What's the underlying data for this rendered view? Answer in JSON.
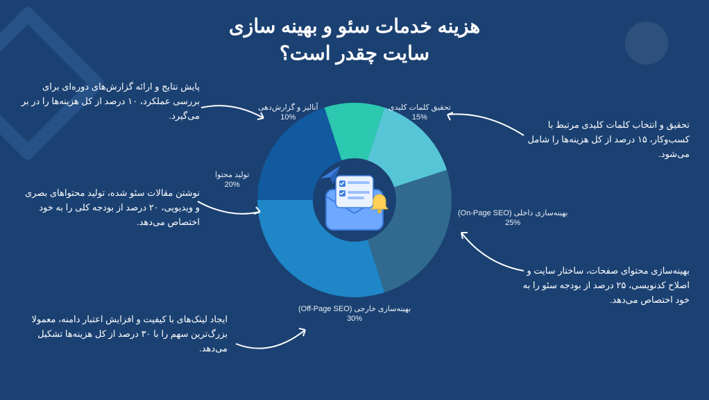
{
  "title_line1": "هزینه خدمات سئو و بهینه سازی",
  "title_line2": "سایت چقدر است؟",
  "chart": {
    "type": "donut",
    "background_color": "#1b4172",
    "inner_radius": 60,
    "outer_radius": 140,
    "ring_gap_color": "#1b4172",
    "slices": [
      {
        "key": "keyword_research",
        "label": "تحقیق کلمات کلیدی",
        "pct_text": "15%",
        "value": 15,
        "color": "#56c6d6"
      },
      {
        "key": "on_page",
        "label": "بهینه‌سازی داخلی (On-Page SEO)",
        "pct_text": "25%",
        "value": 25,
        "color": "#316a8e"
      },
      {
        "key": "off_page",
        "label": "بهینه‌سازی خارجی (Off-Page SEO)",
        "pct_text": "30%",
        "value": 30,
        "color": "#1f86c7"
      },
      {
        "key": "content",
        "label": "تولید محتوا",
        "pct_text": "20%",
        "value": 20,
        "color": "#125aa0"
      },
      {
        "key": "analytics",
        "label": "آنالیز و گزارش‌دهی",
        "pct_text": "10%",
        "value": 10,
        "color": "#2cc9b0"
      }
    ],
    "start_angle_deg": -72,
    "label_fontsize": 11,
    "label_color": "#e8eef6"
  },
  "notes": {
    "keyword_research": "تحقیق و انتخاب کلمات کلیدی مرتبط با کسب‌وکار، ۱۵ درصد از کل هزینه‌ها را شامل می‌شود.",
    "on_page": "بهینه‌سازی محتوای صفحات، ساختار سایت و اصلاح کدنویسی، ۲۵ درصد از بودجه سئو را به خود اختصاص می‌دهد.",
    "off_page": "ایجاد لینک‌های با کیفیت و افزایش اعتبار دامنه، معمولا بزرگ‌ترین سهم را با ۳۰ درصد از کل هزینه‌ها تشکیل می‌دهد.",
    "content": "نوشتن مقالات سئو شده، تولید محتواهای بصری و ویدیویی، ۲۰ درصد از بودجه کلی را به خود اختصاص می‌دهد.",
    "analytics": "پایش نتایج و ارائه گزارش‌های دوره‌ای برای بررسی عملکرد، ۱۰ درصد از کل هزینه‌ها را در بر می‌گیرد."
  },
  "colors": {
    "page_bg": "#1b4172",
    "text": "#ffffff",
    "arrow": "#ffffff"
  },
  "icon": {
    "envelope_fill": "#6ea8ff",
    "envelope_stroke": "#3d7de0",
    "paper_fill": "#eaf2ff",
    "check_fill": "#3d7de0",
    "bell_fill": "#ffd257",
    "plane_fill": "#3d7de0"
  }
}
